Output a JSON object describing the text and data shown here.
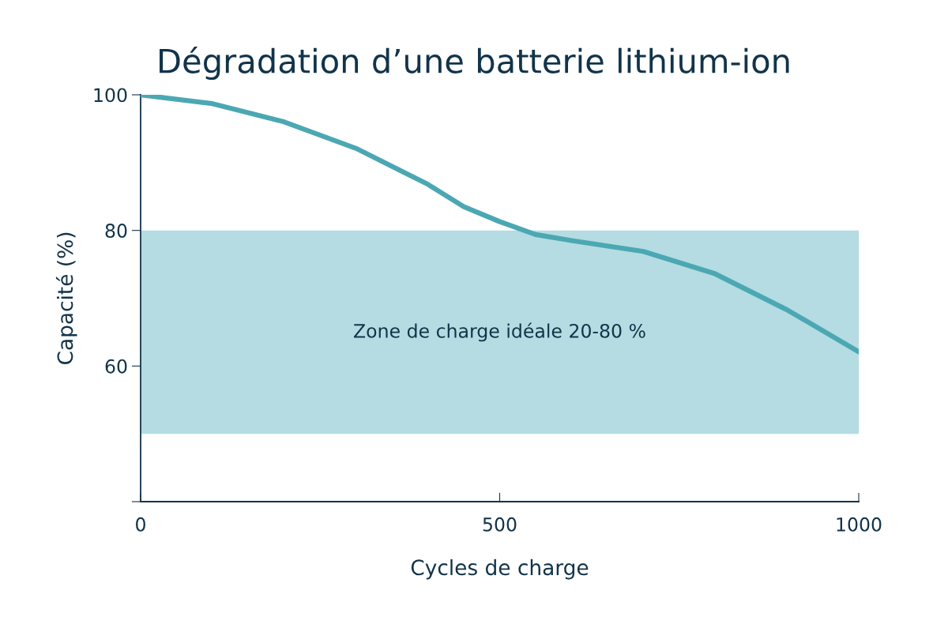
{
  "chart_data": {
    "type": "line",
    "title": "Dégradation d’une batterie lithium-ion",
    "xlabel": "Cycles de charge",
    "ylabel": "Capacité (%)",
    "x": [
      0,
      100,
      200,
      300,
      400,
      450,
      500,
      550,
      600,
      700,
      800,
      900,
      1000
    ],
    "series": [
      {
        "color": "#4ba8b3",
        "values": [
          100,
          98.7,
          96.0,
          92.1,
          86.8,
          83.5,
          81.3,
          79.4,
          78.5,
          76.9,
          73.6,
          68.3,
          62.1
        ]
      }
    ],
    "xlim": [
      0,
      1000
    ],
    "xticks": [
      0,
      500,
      1000
    ],
    "ylim": [
      40,
      100
    ],
    "yticks": [
      {
        "value": 40,
        "label": null
      },
      60,
      80,
      100
    ],
    "bands": [
      {
        "axis": "y",
        "from": 50,
        "to": 80,
        "label": "Zone de charge idéale 20-80 %",
        "color": "#b4dce2"
      }
    ],
    "grid": false,
    "legend": false,
    "marker": "none",
    "line_style": "solid"
  }
}
